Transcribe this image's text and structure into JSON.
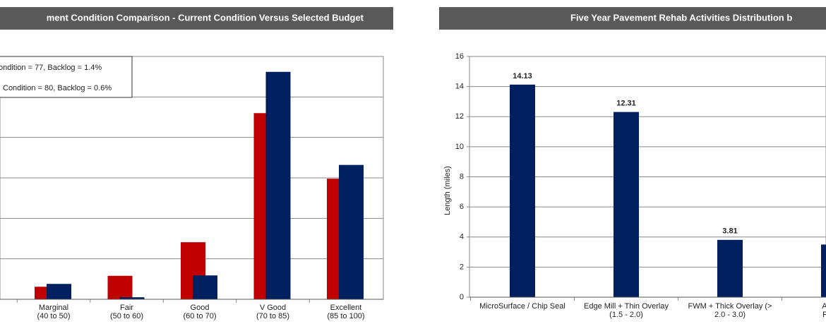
{
  "chart_data": [
    {
      "type": "bar",
      "title": "ment Condition Comparison - Current Condition Versus Selected Budget",
      "categories": [
        "Marginal\n(40 to 50)",
        "Fair\n(50 to 60)",
        "Good\n(60 to 70)",
        "V Good\n(70 to 85)",
        "Excellent\n(85 to 100)"
      ],
      "series": [
        {
          "name": "ondition  = 77, Backlog = 1.4%",
          "color": "#c00000",
          "values": [
            3.1,
            5.8,
            14.1,
            46,
            29.8
          ]
        },
        {
          "name": "Condition = 80, Backlog = 0.6%",
          "color": "#002060",
          "values": [
            3.8,
            0.5,
            5.9,
            56.2,
            33.2
          ]
        }
      ],
      "ylim": [
        0,
        60
      ],
      "gridlines": [
        10,
        20,
        30,
        40,
        50
      ]
    },
    {
      "type": "bar",
      "title": "Five Year Pavement Rehab Activities Distribution b",
      "y_label": "Length (miles)",
      "categories": [
        "MicroSurface / Chip Seal",
        "Edge Mill + Thin Overlay\n(1.5 - 2.0)",
        "FWM + Thick Overlay (>\n2.0 - 3.0)",
        "ACP R\nRecon"
      ],
      "series": [
        {
          "color": "#002060",
          "values": [
            14.13,
            12.31,
            3.81,
            3.5
          ]
        }
      ],
      "ylim": [
        0,
        16
      ],
      "yticks": [
        0,
        2,
        4,
        6,
        8,
        10,
        12,
        14,
        16
      ],
      "grid": true
    }
  ]
}
